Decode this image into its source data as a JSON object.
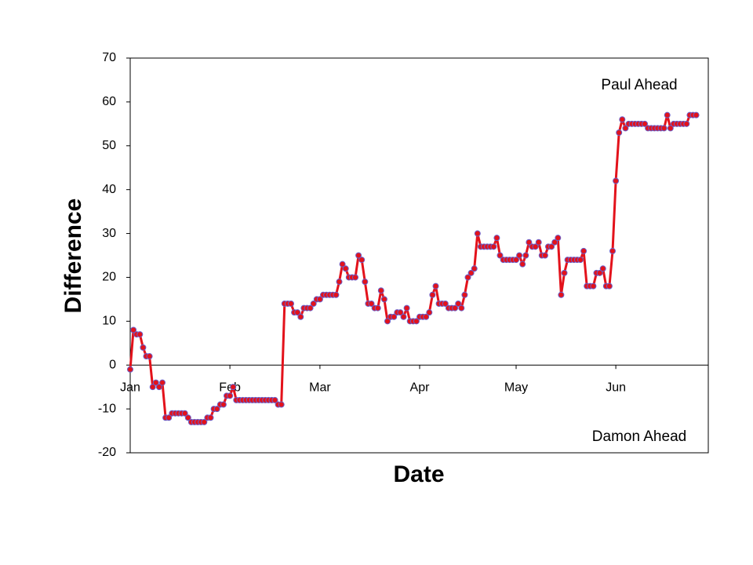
{
  "chart_data": {
    "type": "line",
    "x_label": "Date",
    "y_label": "Difference",
    "annotations": [
      "Paul Ahead",
      "Damon Ahead"
    ],
    "categories": [
      "Jan",
      null,
      null,
      null,
      null,
      null,
      null,
      null,
      null,
      null,
      null,
      null,
      null,
      null,
      null,
      null,
      null,
      null,
      null,
      null,
      null,
      null,
      null,
      null,
      null,
      null,
      null,
      null,
      null,
      null,
      null,
      "Feb",
      null,
      null,
      null,
      null,
      null,
      null,
      null,
      null,
      null,
      null,
      null,
      null,
      null,
      null,
      null,
      null,
      null,
      null,
      null,
      null,
      null,
      null,
      null,
      null,
      null,
      null,
      null,
      "Mar",
      null,
      null,
      null,
      null,
      null,
      null,
      null,
      null,
      null,
      null,
      null,
      null,
      null,
      null,
      null,
      null,
      null,
      null,
      null,
      null,
      null,
      null,
      null,
      null,
      null,
      null,
      null,
      null,
      null,
      null,
      "Apr",
      null,
      null,
      null,
      null,
      null,
      null,
      null,
      null,
      null,
      null,
      null,
      null,
      null,
      null,
      null,
      null,
      null,
      null,
      null,
      null,
      null,
      null,
      null,
      null,
      null,
      null,
      null,
      null,
      null,
      "May",
      null,
      null,
      null,
      null,
      null,
      null,
      null,
      null,
      null,
      null,
      null,
      null,
      null,
      null,
      null,
      null,
      null,
      null,
      null,
      null,
      null,
      null,
      null,
      null,
      null,
      null,
      null,
      null,
      null,
      null,
      "Jun",
      null,
      null,
      null,
      null,
      null,
      null,
      null,
      null,
      null,
      null,
      null,
      null,
      null,
      null,
      null,
      null,
      null,
      null,
      null,
      null,
      null,
      null,
      null,
      null,
      null
    ],
    "values": [
      -1,
      8,
      7,
      7,
      4,
      2,
      2,
      -5,
      -4,
      -5,
      -4,
      -12,
      -12,
      -11,
      -11,
      -11,
      -11,
      -11,
      -12,
      -13,
      -13,
      -13,
      -13,
      -13,
      -12,
      -12,
      -10,
      -10,
      -9,
      -9,
      -7,
      -7,
      -5,
      -8,
      -8,
      -8,
      -8,
      -8,
      -8,
      -8,
      -8,
      -8,
      -8,
      -8,
      -8,
      -8,
      -9,
      -9,
      14,
      14,
      14,
      12,
      12,
      11,
      13,
      13,
      13,
      14,
      15,
      15,
      16,
      16,
      16,
      16,
      16,
      19,
      23,
      22,
      20,
      20,
      20,
      25,
      24,
      19,
      14,
      14,
      13,
      13,
      17,
      15,
      10,
      11,
      11,
      12,
      12,
      11,
      13,
      10,
      10,
      10,
      11,
      11,
      11,
      12,
      16,
      18,
      14,
      14,
      14,
      13,
      13,
      13,
      14,
      13,
      16,
      20,
      21,
      22,
      30,
      27,
      27,
      27,
      27,
      27,
      29,
      25,
      24,
      24,
      24,
      24,
      24,
      25,
      23,
      25,
      28,
      27,
      27,
      28,
      25,
      25,
      27,
      27,
      28,
      29,
      16,
      21,
      24,
      24,
      24,
      24,
      24,
      26,
      18,
      18,
      18,
      21,
      21,
      22,
      18,
      18,
      26,
      42,
      53,
      56,
      54,
      55,
      55,
      55,
      55,
      55,
      55,
      54,
      54,
      54,
      54,
      54,
      54,
      57,
      54,
      55,
      55,
      55,
      55,
      55,
      57,
      57,
      57
    ],
    "color": "#e3121b",
    "marker_color": "#6a5fc8",
    "ylim": [
      -20,
      70
    ],
    "yticks": [
      -20,
      -10,
      0,
      10,
      20,
      30,
      40,
      50,
      60,
      70
    ]
  }
}
